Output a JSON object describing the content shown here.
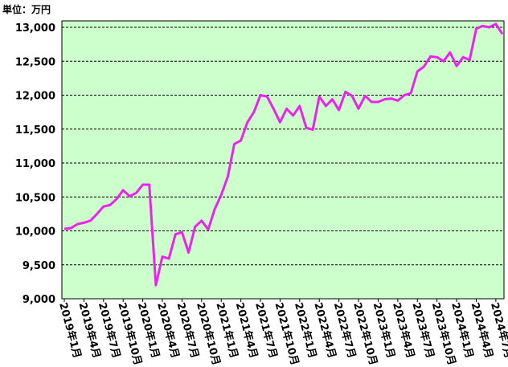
{
  "chart_data": {
    "type": "line",
    "unit_label": "単位：万円",
    "categories": [
      "2019年1月",
      null,
      null,
      "2019年4月",
      null,
      null,
      "2019年7月",
      null,
      null,
      "2019年10月",
      null,
      null,
      "2020年1月",
      null,
      null,
      "2020年4月",
      null,
      null,
      "2020年7月",
      null,
      null,
      "2020年10月",
      null,
      null,
      "2021年1月",
      null,
      null,
      "2021年4月",
      null,
      null,
      "2021年7月",
      null,
      null,
      "2021年10月",
      null,
      null,
      "2022年1月",
      null,
      null,
      "2022年4月",
      null,
      null,
      "2022年7月",
      null,
      null,
      "2022年10月",
      null,
      null,
      "2023年1月",
      null,
      null,
      "2023年4月",
      null,
      null,
      "2023年7月",
      null,
      null,
      "2023年10月",
      null,
      null,
      "2024年1月",
      null,
      null,
      "2024年4月",
      null,
      null,
      "2024年7月",
      null
    ],
    "series": [
      {
        "color": "#ee22ee",
        "values": [
          10030,
          10040,
          10100,
          10120,
          10150,
          10250,
          10360,
          10380,
          10470,
          10600,
          10510,
          10560,
          10680,
          10680,
          9200,
          9620,
          9590,
          9950,
          9980,
          9680,
          10060,
          10150,
          10020,
          10320,
          10530,
          10800,
          11280,
          11330,
          11600,
          11750,
          12000,
          11980,
          11800,
          11600,
          11800,
          11700,
          11840,
          11520,
          11490,
          11980,
          11840,
          11940,
          11780,
          12050,
          11990,
          11800,
          11990,
          11900,
          11900,
          11940,
          11950,
          11920,
          12000,
          12030,
          12350,
          12420,
          12570,
          12560,
          12500,
          12630,
          12430,
          12560,
          12520,
          12980,
          13020,
          13000,
          13050,
          12900
        ]
      }
    ],
    "ylim": [
      9000,
      13000
    ],
    "yticks": [
      {
        "value": 9000,
        "label": "9,000"
      },
      {
        "value": 9500,
        "label": "9,500"
      },
      {
        "value": 10000,
        "label": "10,000"
      },
      {
        "value": 10500,
        "label": "10,500"
      },
      {
        "value": 11000,
        "label": "11,000"
      },
      {
        "value": 11500,
        "label": "11,500"
      },
      {
        "value": 12000,
        "label": "12,000"
      },
      {
        "value": 12500,
        "label": "12,500"
      },
      {
        "value": 13000,
        "label": "13,000"
      }
    ],
    "grid": true,
    "background": "#ccffcc"
  }
}
